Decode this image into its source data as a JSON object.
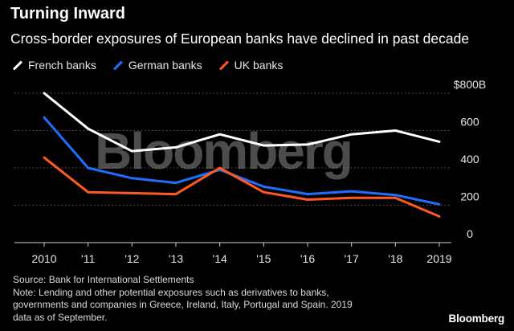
{
  "title": "Turning Inward",
  "subtitle": "Cross-border exposures of European banks have declined in past decade",
  "legend": [
    {
      "label": "French banks",
      "color": "#ffffff"
    },
    {
      "label": "German banks",
      "color": "#1f6fff"
    },
    {
      "label": "UK banks",
      "color": "#ff5a1f"
    }
  ],
  "watermark": "Bloomberg",
  "source": "Source: Bank for International Settlements",
  "note_lines": [
    "Note: Lending and other potential exposures such as derivatives to banks,",
    "governments and companies in Greece, Ireland, Italy, Portugal and Spain. 2019",
    "data as of September."
  ],
  "logo": "Bloomberg",
  "chart_data": {
    "type": "line",
    "title": "Turning Inward",
    "subtitle": "Cross-border exposures of European banks have declined in past decade",
    "x": [
      "2010",
      "'11",
      "'12",
      "'13",
      "'14",
      "'15",
      "'16",
      "'17",
      "'18",
      "2019"
    ],
    "y_tick_labels": [
      "$800B",
      "600",
      "400",
      "200",
      "0"
    ],
    "y_tick_values": [
      800,
      600,
      400,
      200,
      0
    ],
    "ylim": [
      0,
      800
    ],
    "grid": "horizontal dotted",
    "y_axis_side": "right",
    "legend_position": "top-left",
    "series": [
      {
        "name": "French banks",
        "color": "#ffffff",
        "values": [
          800,
          610,
          490,
          510,
          580,
          520,
          525,
          580,
          600,
          540
        ]
      },
      {
        "name": "German banks",
        "color": "#1f6fff",
        "values": [
          670,
          400,
          345,
          320,
          390,
          300,
          260,
          275,
          255,
          205
        ]
      },
      {
        "name": "UK banks",
        "color": "#ff5a1f",
        "values": [
          455,
          270,
          265,
          260,
          400,
          270,
          230,
          240,
          240,
          140
        ]
      }
    ]
  }
}
